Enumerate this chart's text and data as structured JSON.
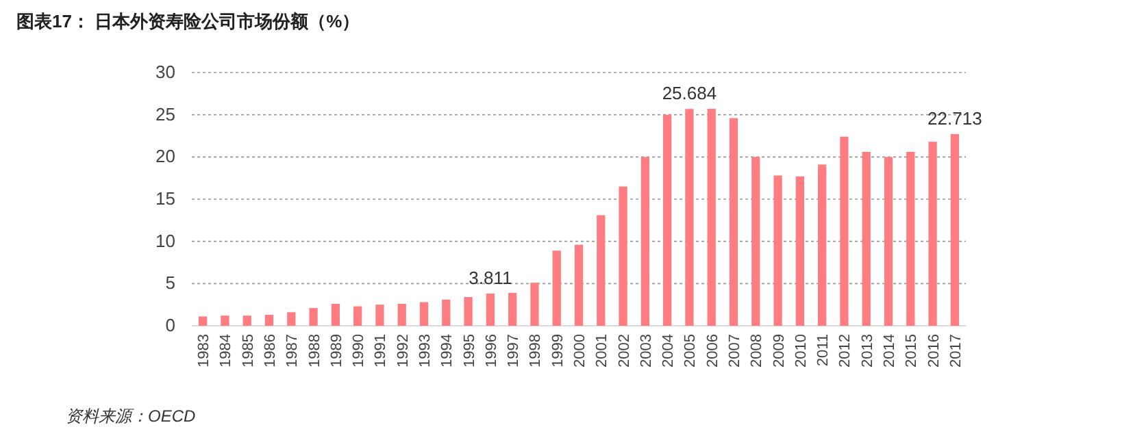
{
  "chart_data": {
    "type": "bar",
    "title": "图表17：  日本外资寿险公司市场份额（%）",
    "categories": [
      "1983",
      "1984",
      "1985",
      "1986",
      "1987",
      "1988",
      "1989",
      "1990",
      "1991",
      "1992",
      "1993",
      "1994",
      "1995",
      "1996",
      "1997",
      "1998",
      "1999",
      "2000",
      "2001",
      "2002",
      "2003",
      "2004",
      "2005",
      "2006",
      "2007",
      "2008",
      "2009",
      "2010",
      "2011",
      "2012",
      "2013",
      "2014",
      "2015",
      "2016",
      "2017"
    ],
    "values": [
      1.1,
      1.2,
      1.2,
      1.3,
      1.6,
      2.1,
      2.6,
      2.3,
      2.5,
      2.6,
      2.8,
      3.1,
      3.4,
      3.811,
      3.9,
      5.1,
      8.9,
      9.6,
      13.1,
      16.5,
      20.0,
      25.0,
      25.684,
      25.7,
      24.6,
      20.0,
      17.8,
      17.7,
      19.1,
      22.4,
      20.6,
      20.0,
      20.6,
      21.8,
      22.713
    ],
    "value_labels": [
      null,
      null,
      null,
      null,
      null,
      null,
      null,
      null,
      null,
      null,
      null,
      null,
      null,
      "3.811",
      null,
      null,
      null,
      null,
      null,
      null,
      null,
      null,
      "25.684",
      null,
      null,
      null,
      null,
      null,
      null,
      null,
      null,
      null,
      null,
      null,
      "22.713"
    ],
    "color": "#ff7c80",
    "ylim": [
      0,
      30
    ],
    "yticks": [
      0,
      5,
      10,
      15,
      20,
      25,
      30
    ],
    "grid": "y",
    "annotations": [
      "资料来源：OECD"
    ]
  }
}
